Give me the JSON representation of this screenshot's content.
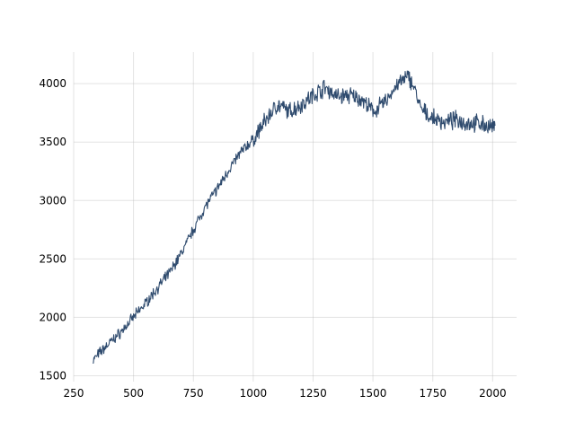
{
  "chart_data": {
    "type": "line",
    "title": "",
    "xlabel": "",
    "ylabel": "",
    "xlim": [
      250,
      2100
    ],
    "ylim": [
      1450,
      4270
    ],
    "x_ticks": [
      250,
      500,
      750,
      1000,
      1250,
      1500,
      1750,
      2000
    ],
    "y_ticks": [
      1500,
      2000,
      2500,
      3000,
      3500,
      4000
    ],
    "grid": true,
    "legend": "none",
    "series": [
      {
        "color": "#2f4b6e",
        "x": [
          330,
          360,
          400,
          450,
          500,
          550,
          600,
          650,
          700,
          750,
          800,
          850,
          900,
          950,
          1000,
          1050,
          1100,
          1150,
          1200,
          1250,
          1300,
          1350,
          1400,
          1450,
          1500,
          1550,
          1600,
          1650,
          1670,
          1700,
          1750,
          1800,
          1850,
          1900,
          1950,
          2000,
          2010
        ],
        "y": [
          1630,
          1700,
          1780,
          1880,
          2000,
          2120,
          2250,
          2380,
          2550,
          2750,
          2950,
          3100,
          3270,
          3420,
          3520,
          3680,
          3820,
          3760,
          3820,
          3900,
          3970,
          3890,
          3900,
          3870,
          3760,
          3840,
          3990,
          4060,
          3980,
          3780,
          3700,
          3670,
          3690,
          3660,
          3660,
          3620,
          3640
        ]
      }
    ]
  }
}
